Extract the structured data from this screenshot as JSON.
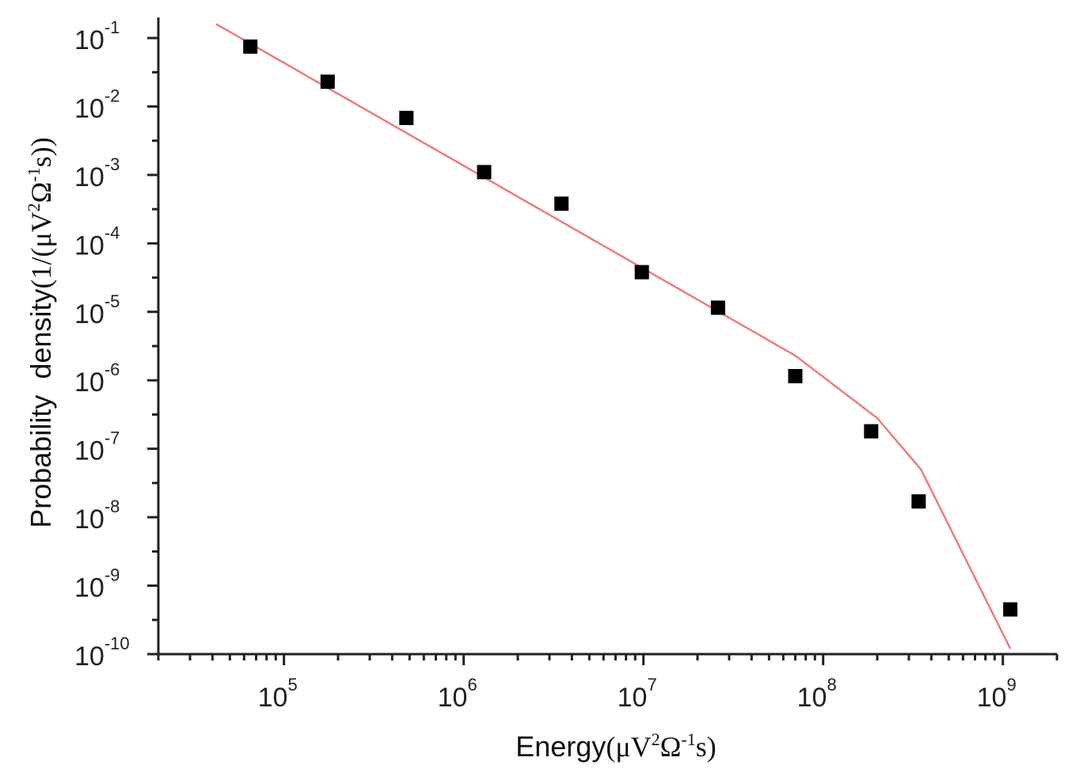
{
  "chart_data": {
    "type": "scatter",
    "title": "",
    "xlabel": "Energy",
    "xlabel_unit": {
      "base": "μV",
      "sup1": "2",
      "mid": "Ω",
      "sup2": "-1",
      "tail": "s"
    },
    "ylabel": "Probability  density",
    "ylabel_unit": {
      "open": "(1/(μV",
      "sup1": "2",
      "mid": "Ω",
      "sup2": "-1",
      "close": "s))"
    },
    "xscale": "log",
    "yscale": "log",
    "xlim": [
      20000,
      2000000000
    ],
    "ylim": [
      1e-10,
      0.2
    ],
    "grid": false,
    "x_ticks": [
      {
        "value": 100000,
        "base": "10",
        "exp": "5"
      },
      {
        "value": 1000000,
        "base": "10",
        "exp": "6"
      },
      {
        "value": 10000000,
        "base": "10",
        "exp": "7"
      },
      {
        "value": 100000000,
        "base": "10",
        "exp": "8"
      },
      {
        "value": 1000000000,
        "base": "10",
        "exp": "9"
      }
    ],
    "y_ticks": [
      {
        "value": 0.1,
        "base": "10",
        "exp": "-1"
      },
      {
        "value": 0.01,
        "base": "10",
        "exp": "-2"
      },
      {
        "value": 0.001,
        "base": "10",
        "exp": "-3"
      },
      {
        "value": 0.0001,
        "base": "10",
        "exp": "-4"
      },
      {
        "value": 1e-05,
        "base": "10",
        "exp": "-5"
      },
      {
        "value": 1e-06,
        "base": "10",
        "exp": "-6"
      },
      {
        "value": 1e-07,
        "base": "10",
        "exp": "-7"
      },
      {
        "value": 1e-08,
        "base": "10",
        "exp": "-8"
      },
      {
        "value": 1e-09,
        "base": "10",
        "exp": "-9"
      },
      {
        "value": 1e-10,
        "base": "10",
        "exp": "-10"
      }
    ],
    "series": [
      {
        "kind": "scatter",
        "marker": "square",
        "color": "#000000",
        "points": [
          {
            "x": 65000,
            "y": 0.075
          },
          {
            "x": 175000,
            "y": 0.023
          },
          {
            "x": 480000,
            "y": 0.0068
          },
          {
            "x": 1300000,
            "y": 0.0011
          },
          {
            "x": 3500000,
            "y": 0.00038
          },
          {
            "x": 9800000,
            "y": 3.8e-05
          },
          {
            "x": 26000000,
            "y": 1.15e-05
          },
          {
            "x": 70000000,
            "y": 1.15e-06
          },
          {
            "x": 185000000,
            "y": 1.8e-07
          },
          {
            "x": 340000000,
            "y": 1.7e-08
          },
          {
            "x": 1100000000,
            "y": 4.5e-10
          }
        ]
      },
      {
        "kind": "line",
        "color": "#f07a7a",
        "points": [
          {
            "x": 42000,
            "y": 0.16
          },
          {
            "x": 70000000,
            "y": 2.3e-06
          },
          {
            "x": 200000000,
            "y": 2.8e-07
          },
          {
            "x": 350000000,
            "y": 5e-08
          },
          {
            "x": 1100000000,
            "y": 1.2e-10
          }
        ]
      }
    ]
  }
}
